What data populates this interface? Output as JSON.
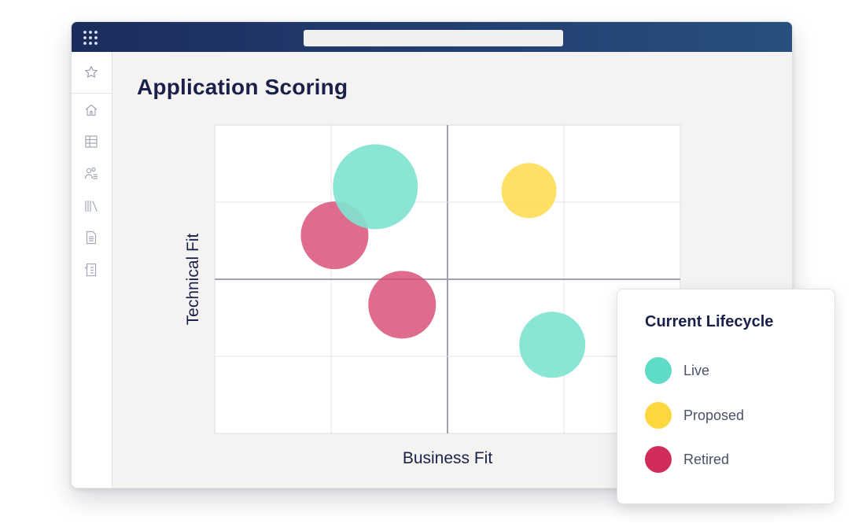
{
  "window": {
    "url_bar_text": ""
  },
  "page": {
    "title": "Application Scoring"
  },
  "sidebar": {
    "items": [
      {
        "icon": "star-icon"
      },
      {
        "icon": "home-icon"
      },
      {
        "icon": "table-icon"
      },
      {
        "icon": "users-icon"
      },
      {
        "icon": "library-icon"
      },
      {
        "icon": "document-icon"
      },
      {
        "icon": "checklist-icon"
      }
    ]
  },
  "chart_data": {
    "type": "scatter",
    "title": "",
    "xlabel": "Business Fit",
    "ylabel": "Technical Fit",
    "xlim": [
      0,
      4
    ],
    "ylim": [
      0,
      4
    ],
    "grid": true,
    "quadrant_lines": {
      "x": 2,
      "y": 2
    },
    "series": [
      {
        "name": "Live",
        "color": "#80e3d1",
        "points": [
          {
            "x": 1.38,
            "y": 3.2,
            "size": 54
          },
          {
            "x": 2.9,
            "y": 1.15,
            "size": 42
          }
        ]
      },
      {
        "name": "Proposed",
        "color": "#fddd58",
        "points": [
          {
            "x": 2.7,
            "y": 3.15,
            "size": 35
          }
        ]
      },
      {
        "name": "Retired",
        "color": "#d84c73",
        "points": [
          {
            "x": 1.03,
            "y": 2.57,
            "size": 43
          },
          {
            "x": 1.61,
            "y": 1.67,
            "size": 43
          }
        ]
      }
    ]
  },
  "legend": {
    "title": "Current Lifecycle",
    "items": [
      {
        "label": "Live",
        "color": "#5fdcc6"
      },
      {
        "label": "Proposed",
        "color": "#fcd73e"
      },
      {
        "label": "Retired",
        "color": "#d02d5a"
      }
    ]
  }
}
